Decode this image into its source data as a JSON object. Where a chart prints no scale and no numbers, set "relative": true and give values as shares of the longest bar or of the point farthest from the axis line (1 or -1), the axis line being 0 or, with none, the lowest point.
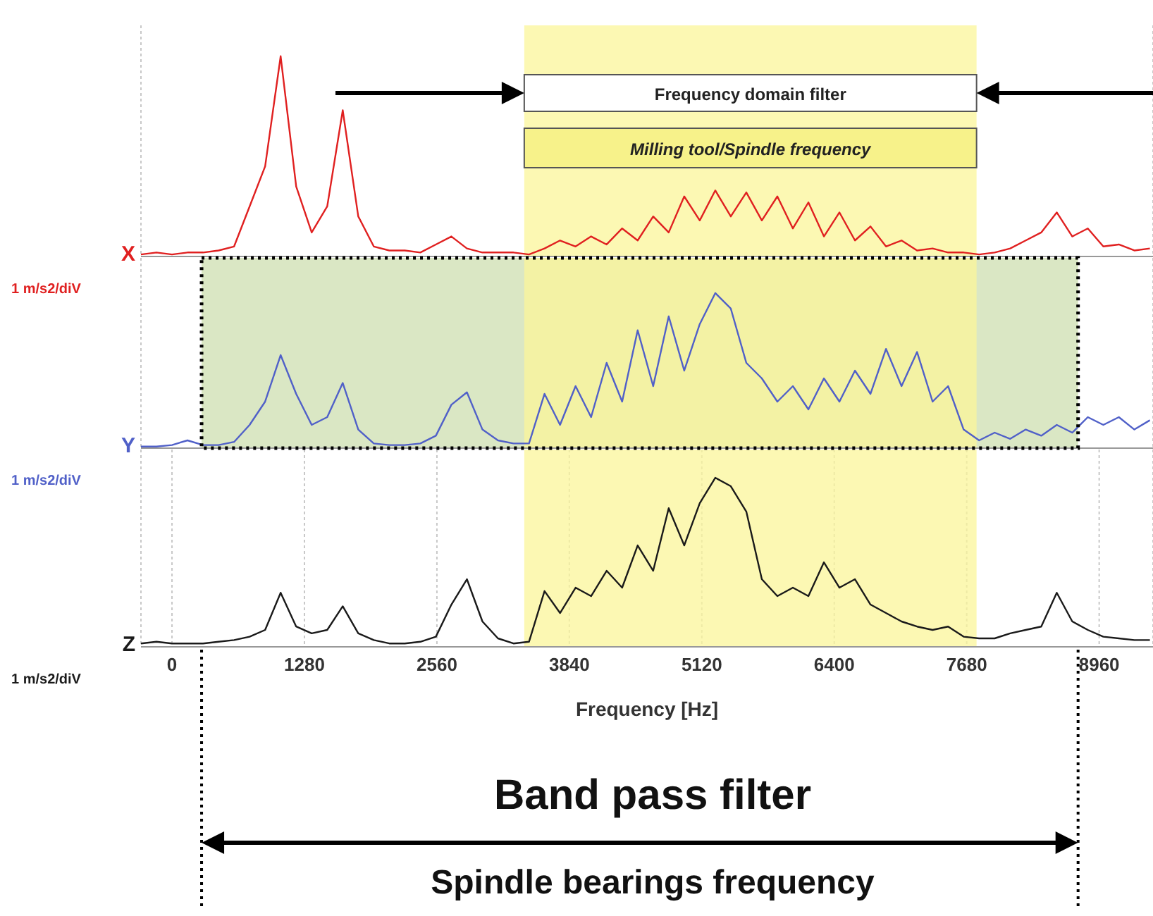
{
  "chart_data": [
    {
      "type": "line",
      "relative": true,
      "ylabel": "1 m/s2/diV",
      "xlim": [
        -300,
        9480
      ],
      "xticks": [
        0,
        1280,
        2560,
        3840,
        5120,
        6400,
        7680,
        8960
      ],
      "tick_labels": false,
      "grid": "x",
      "x": [
        -300,
        -150,
        0,
        150,
        300,
        450,
        600,
        750,
        900,
        1050,
        1200,
        1350,
        1500,
        1650,
        1800,
        1950,
        2100,
        2250,
        2400,
        2550,
        2700,
        2850,
        3000,
        3150,
        3300,
        3450,
        3600,
        3750,
        3900,
        4050,
        4200,
        4350,
        4500,
        4650,
        4800,
        4950,
        5100,
        5250,
        5400,
        5550,
        5700,
        5850,
        6000,
        6150,
        6300,
        6450,
        6600,
        6750,
        6900,
        7050,
        7200,
        7350,
        7500,
        7650,
        7800,
        7950,
        8100,
        8250,
        8400,
        8550,
        8700,
        8850,
        9000,
        9150,
        9300,
        9450
      ],
      "series": [
        {
          "name": "X",
          "color": "#e02020",
          "values": [
            0.01,
            0.02,
            0.01,
            0.02,
            0.02,
            0.03,
            0.05,
            0.25,
            0.45,
            1.0,
            0.35,
            0.12,
            0.25,
            0.73,
            0.2,
            0.05,
            0.03,
            0.03,
            0.02,
            0.06,
            0.1,
            0.04,
            0.02,
            0.02,
            0.02,
            0.01,
            0.04,
            0.08,
            0.05,
            0.1,
            0.06,
            0.14,
            0.08,
            0.2,
            0.12,
            0.3,
            0.18,
            0.33,
            0.2,
            0.32,
            0.18,
            0.3,
            0.14,
            0.27,
            0.1,
            0.22,
            0.08,
            0.15,
            0.05,
            0.08,
            0.03,
            0.04,
            0.02,
            0.02,
            0.01,
            0.02,
            0.04,
            0.08,
            0.12,
            0.22,
            0.1,
            0.14,
            0.05,
            0.06,
            0.03,
            0.04
          ]
        }
      ],
      "bands": [
        {
          "axis": "x",
          "from": 3404,
          "to": 7775,
          "label": "Milling tool/Spindle frequency",
          "color": "#fbf59a"
        }
      ],
      "annotations": [
        "Frequency domain filter"
      ]
    },
    {
      "type": "line",
      "relative": true,
      "ylabel": "1 m/s2/diV",
      "xlim": [
        -300,
        9480
      ],
      "xticks": [
        0,
        1280,
        2560,
        3840,
        5120,
        6400,
        7680,
        8960
      ],
      "tick_labels": false,
      "grid": "x",
      "x": [
        -300,
        -150,
        0,
        150,
        300,
        450,
        600,
        750,
        900,
        1050,
        1200,
        1350,
        1500,
        1650,
        1800,
        1950,
        2100,
        2250,
        2400,
        2550,
        2700,
        2850,
        3000,
        3150,
        3300,
        3450,
        3600,
        3750,
        3900,
        4050,
        4200,
        4350,
        4500,
        4650,
        4800,
        4950,
        5100,
        5250,
        5400,
        5550,
        5700,
        5850,
        6000,
        6150,
        6300,
        6450,
        6600,
        6750,
        6900,
        7050,
        7200,
        7350,
        7500,
        7650,
        7800,
        7950,
        8100,
        8250,
        8400,
        8550,
        8700,
        8850,
        9000,
        9150,
        9300,
        9450
      ],
      "series": [
        {
          "name": "Y",
          "color": "#5060c8",
          "values": [
            0.01,
            0.01,
            0.02,
            0.05,
            0.02,
            0.02,
            0.04,
            0.15,
            0.3,
            0.6,
            0.35,
            0.15,
            0.2,
            0.42,
            0.12,
            0.03,
            0.02,
            0.02,
            0.03,
            0.08,
            0.28,
            0.36,
            0.12,
            0.05,
            0.03,
            0.03,
            0.35,
            0.15,
            0.4,
            0.2,
            0.55,
            0.3,
            0.76,
            0.4,
            0.85,
            0.5,
            0.8,
            1.0,
            0.9,
            0.55,
            0.45,
            0.3,
            0.4,
            0.25,
            0.45,
            0.3,
            0.5,
            0.35,
            0.64,
            0.4,
            0.62,
            0.3,
            0.4,
            0.12,
            0.05,
            0.1,
            0.06,
            0.12,
            0.08,
            0.15,
            0.1,
            0.2,
            0.15,
            0.2,
            0.12,
            0.18
          ]
        }
      ],
      "bands": [
        {
          "axis": "x",
          "from": 286,
          "to": 8756,
          "color": "#cddfb0"
        },
        {
          "axis": "x",
          "from": 3404,
          "to": 7775,
          "color": "#fbf59a"
        }
      ]
    },
    {
      "type": "line",
      "relative": true,
      "ylabel": "1 m/s2/diV",
      "xlabel": "Frequency [Hz]",
      "xlim": [
        -300,
        9480
      ],
      "xticks": [
        0,
        1280,
        2560,
        3840,
        5120,
        6400,
        7680,
        8960
      ],
      "tick_labels": "x",
      "grid": "x",
      "x": [
        -300,
        -150,
        0,
        150,
        300,
        450,
        600,
        750,
        900,
        1050,
        1200,
        1350,
        1500,
        1650,
        1800,
        1950,
        2100,
        2250,
        2400,
        2550,
        2700,
        2850,
        3000,
        3150,
        3300,
        3450,
        3600,
        3750,
        3900,
        4050,
        4200,
        4350,
        4500,
        4650,
        4800,
        4950,
        5100,
        5250,
        5400,
        5550,
        5700,
        5850,
        6000,
        6150,
        6300,
        6450,
        6600,
        6750,
        6900,
        7050,
        7200,
        7350,
        7500,
        7650,
        7800,
        7950,
        8100,
        8250,
        8400,
        8550,
        8700,
        8850,
        9000,
        9150,
        9300,
        9450
      ],
      "series": [
        {
          "name": "Z",
          "color": "#1a1a1a",
          "values": [
            0.02,
            0.03,
            0.02,
            0.02,
            0.02,
            0.03,
            0.04,
            0.06,
            0.1,
            0.32,
            0.12,
            0.08,
            0.1,
            0.24,
            0.08,
            0.04,
            0.02,
            0.02,
            0.03,
            0.06,
            0.25,
            0.4,
            0.15,
            0.05,
            0.02,
            0.03,
            0.33,
            0.2,
            0.35,
            0.3,
            0.45,
            0.35,
            0.6,
            0.45,
            0.82,
            0.6,
            0.85,
            1.0,
            0.95,
            0.8,
            0.4,
            0.3,
            0.35,
            0.3,
            0.5,
            0.35,
            0.4,
            0.25,
            0.2,
            0.15,
            0.12,
            0.1,
            0.12,
            0.06,
            0.05,
            0.05,
            0.08,
            0.1,
            0.12,
            0.32,
            0.15,
            0.1,
            0.06,
            0.05,
            0.04,
            0.04
          ]
        }
      ],
      "bands": [
        {
          "axis": "x",
          "from": 3404,
          "to": 7775,
          "color": "#fbf59a"
        }
      ],
      "annotations": [
        "Band pass filter",
        "Spindle bearings frequency"
      ]
    }
  ]
}
